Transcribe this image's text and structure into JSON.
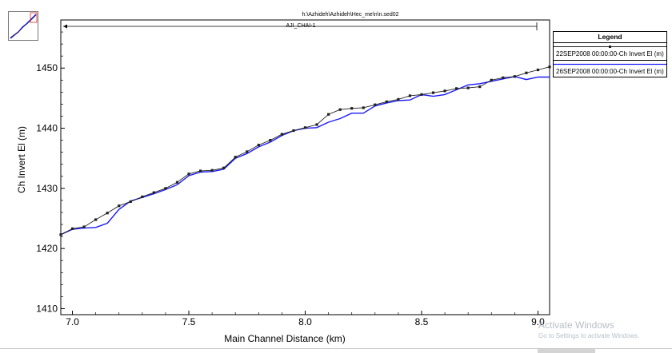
{
  "header": {
    "filename": "h:\\Azhideh\\Azhideh\\Hec_me\\n\\n.sed02",
    "reach": "AJI_CHAI-1"
  },
  "legend": {
    "title": "Legend",
    "entries": [
      {
        "label": "22SEP2008 00:00:00-Ch Invert El (m)",
        "color": "#202020",
        "marker": "square"
      },
      {
        "label": "26SEP2008 00:00:00-Ch Invert El (m)",
        "color": "#1a1aff",
        "marker": "none"
      }
    ]
  },
  "watermark": {
    "line1": "Activate Windows",
    "line2": "Go to Settings to activate Windows."
  },
  "chart_data": {
    "type": "line",
    "xlabel": "Main Channel Distance (km)",
    "ylabel": "Ch Invert El (m)",
    "xlim": [
      6.95,
      9.05
    ],
    "ylim": [
      1409,
      1458
    ],
    "xticks": [
      7.0,
      7.5,
      8.0,
      8.5,
      9.0
    ],
    "xtick_labels": [
      "7.0",
      "7.5",
      "8.0",
      "8.5",
      "9.0"
    ],
    "yticks": [
      1410,
      1420,
      1430,
      1440,
      1450
    ],
    "ytick_labels": [
      "1410",
      "1420",
      "1430",
      "1440",
      "1450"
    ],
    "grid": false,
    "legend_position": "top-right",
    "series": [
      {
        "name": "22SEP2008 00:00:00-Ch Invert El (m)",
        "color": "#202020",
        "marker": "square",
        "x": [
          6.95,
          7.0,
          7.05,
          7.1,
          7.15,
          7.2,
          7.25,
          7.3,
          7.35,
          7.4,
          7.45,
          7.5,
          7.55,
          7.6,
          7.65,
          7.7,
          7.75,
          7.8,
          7.85,
          7.9,
          7.95,
          8.0,
          8.05,
          8.1,
          8.15,
          8.2,
          8.25,
          8.3,
          8.35,
          8.4,
          8.45,
          8.5,
          8.55,
          8.6,
          8.65,
          8.7,
          8.75,
          8.8,
          8.85,
          8.9,
          8.95,
          9.0,
          9.05
        ],
        "y": [
          1422.3,
          1423.3,
          1423.6,
          1424.8,
          1425.9,
          1427.1,
          1427.8,
          1428.6,
          1429.3,
          1430.0,
          1431.0,
          1432.4,
          1432.9,
          1433.0,
          1433.4,
          1435.2,
          1436.1,
          1437.2,
          1438.0,
          1439.0,
          1439.6,
          1440.1,
          1440.6,
          1442.3,
          1443.1,
          1443.3,
          1443.4,
          1443.9,
          1444.4,
          1444.8,
          1445.4,
          1445.6,
          1445.9,
          1446.2,
          1446.6,
          1446.7,
          1446.9,
          1448.0,
          1448.4,
          1448.6,
          1449.2,
          1449.7,
          1450.2
        ]
      },
      {
        "name": "26SEP2008 00:00:00-Ch Invert El (m)",
        "color": "#1a1aff",
        "marker": "none",
        "x": [
          6.95,
          7.0,
          7.05,
          7.1,
          7.15,
          7.2,
          7.25,
          7.3,
          7.35,
          7.4,
          7.45,
          7.5,
          7.55,
          7.6,
          7.65,
          7.7,
          7.75,
          7.8,
          7.85,
          7.9,
          7.95,
          8.0,
          8.05,
          8.1,
          8.15,
          8.2,
          8.25,
          8.3,
          8.35,
          8.4,
          8.45,
          8.5,
          8.55,
          8.6,
          8.65,
          8.7,
          8.75,
          8.8,
          8.85,
          8.9,
          8.95,
          9.0,
          9.05
        ],
        "y": [
          1422.3,
          1423.2,
          1423.4,
          1423.5,
          1424.2,
          1426.5,
          1427.9,
          1428.5,
          1429.1,
          1429.8,
          1430.6,
          1432.1,
          1432.7,
          1432.8,
          1433.2,
          1435.0,
          1435.8,
          1436.9,
          1437.7,
          1438.8,
          1439.6,
          1440.0,
          1440.1,
          1441.0,
          1441.6,
          1442.5,
          1442.5,
          1443.7,
          1444.2,
          1444.6,
          1444.7,
          1445.6,
          1445.3,
          1445.6,
          1446.4,
          1447.2,
          1447.4,
          1447.8,
          1448.2,
          1448.6,
          1448.1,
          1448.5,
          1448.5
        ]
      }
    ]
  }
}
